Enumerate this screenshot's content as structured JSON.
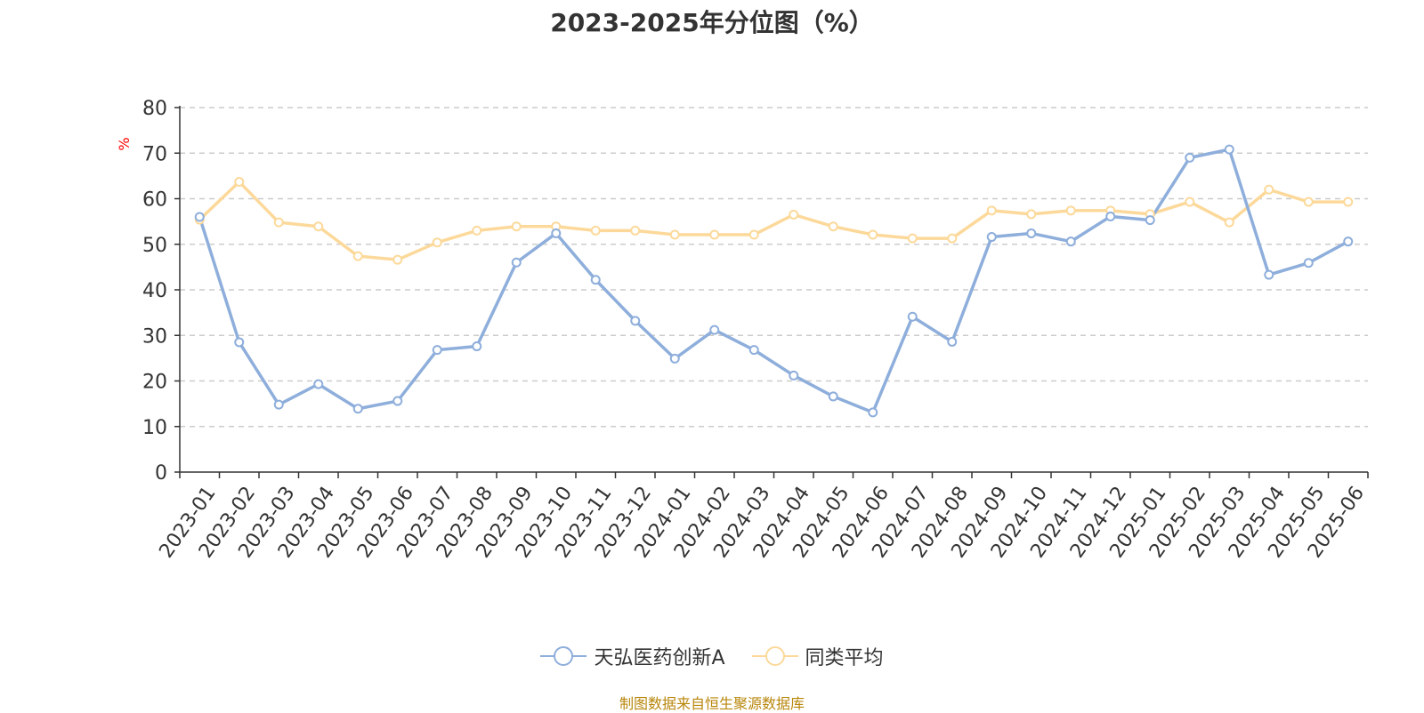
{
  "source_note": "制图数据来自恒生聚源数据库",
  "chart_data": {
    "type": "line",
    "title": "2023-2025年分位图（%）",
    "ylabel": "%",
    "ylim": [
      0,
      80
    ],
    "yticks": [
      0,
      10,
      20,
      30,
      40,
      50,
      60,
      70,
      80
    ],
    "grid": true,
    "legend_position": "bottom-center",
    "categories": [
      "2023-01",
      "2023-02",
      "2023-03",
      "2023-04",
      "2023-05",
      "2023-06",
      "2023-07",
      "2023-08",
      "2023-09",
      "2023-10",
      "2023-11",
      "2023-12",
      "2024-01",
      "2024-02",
      "2024-03",
      "2024-04",
      "2024-05",
      "2024-06",
      "2024-07",
      "2024-08",
      "2024-09",
      "2024-10",
      "2024-11",
      "2024-12",
      "2025-01",
      "2025-02",
      "2025-03",
      "2025-04",
      "2025-05",
      "2025-06"
    ],
    "series": [
      {
        "name": "天弘医药创新A",
        "color": "#8eaedb",
        "values": [
          56,
          28.5,
          14.8,
          19.3,
          13.9,
          15.6,
          26.8,
          27.6,
          46,
          52.4,
          42.2,
          33.2,
          24.9,
          31.2,
          26.8,
          21.2,
          16.6,
          13.1,
          34.1,
          28.6,
          51.6,
          52.4,
          50.6,
          56.1,
          55.3,
          69,
          70.8,
          43.3,
          45.9,
          50.6
        ]
      },
      {
        "name": "同类平均",
        "color": "#fcd99a",
        "values": [
          55.4,
          63.7,
          54.8,
          53.9,
          47.4,
          46.6,
          50.4,
          53,
          53.9,
          53.9,
          53,
          53,
          52.1,
          52.1,
          52.1,
          56.5,
          53.9,
          52.1,
          51.3,
          51.3,
          57.4,
          56.6,
          57.4,
          57.4,
          56.6,
          59.3,
          54.8,
          62,
          59.3,
          59.3
        ]
      }
    ]
  }
}
